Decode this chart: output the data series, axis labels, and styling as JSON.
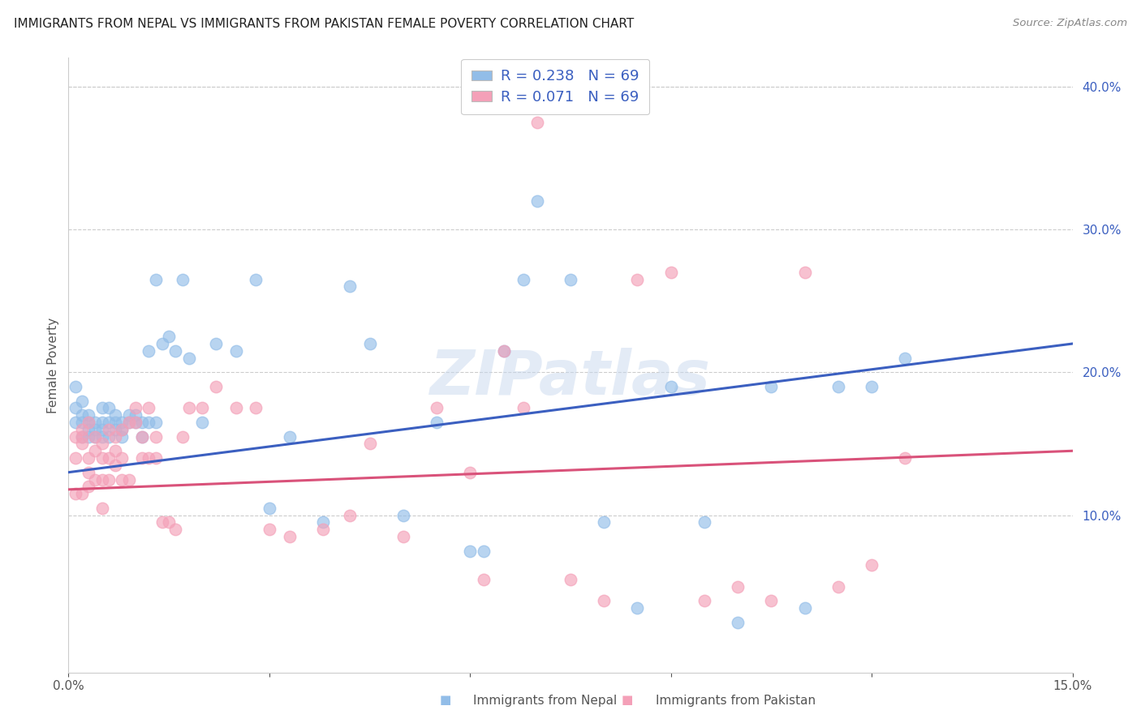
{
  "title": "IMMIGRANTS FROM NEPAL VS IMMIGRANTS FROM PAKISTAN FEMALE POVERTY CORRELATION CHART",
  "source": "Source: ZipAtlas.com",
  "xlabel_label": "Immigrants from Nepal",
  "xlabel_label2": "Immigrants from Pakistan",
  "ylabel": "Female Poverty",
  "xlim": [
    0.0,
    0.15
  ],
  "ylim": [
    -0.01,
    0.42
  ],
  "x_ticks": [
    0.0,
    0.15
  ],
  "x_tick_labels": [
    "0.0%",
    "15.0%"
  ],
  "y_ticks_right": [
    0.1,
    0.2,
    0.3,
    0.4
  ],
  "y_tick_labels_right": [
    "10.0%",
    "20.0%",
    "30.0%",
    "40.0%"
  ],
  "nepal_color": "#92BDE8",
  "pakistan_color": "#F4A0B8",
  "nepal_line_color": "#3B5FC0",
  "pakistan_line_color": "#D9527A",
  "legend_text_color": "#3B5FC0",
  "R_nepal": "0.238",
  "N_nepal": "69",
  "R_pakistan": "0.071",
  "N_pakistan": "69",
  "watermark": "ZIPatlas",
  "nepal_x": [
    0.001,
    0.001,
    0.001,
    0.002,
    0.002,
    0.002,
    0.002,
    0.003,
    0.003,
    0.003,
    0.003,
    0.004,
    0.004,
    0.004,
    0.005,
    0.005,
    0.005,
    0.005,
    0.006,
    0.006,
    0.006,
    0.007,
    0.007,
    0.007,
    0.008,
    0.008,
    0.008,
    0.009,
    0.009,
    0.01,
    0.01,
    0.011,
    0.011,
    0.012,
    0.012,
    0.013,
    0.013,
    0.014,
    0.015,
    0.016,
    0.017,
    0.018,
    0.02,
    0.022,
    0.025,
    0.028,
    0.03,
    0.033,
    0.038,
    0.042,
    0.045,
    0.05,
    0.055,
    0.06,
    0.062,
    0.065,
    0.068,
    0.07,
    0.075,
    0.08,
    0.085,
    0.09,
    0.095,
    0.1,
    0.105,
    0.11,
    0.115,
    0.12,
    0.125
  ],
  "nepal_y": [
    0.175,
    0.19,
    0.165,
    0.18,
    0.165,
    0.155,
    0.17,
    0.17,
    0.165,
    0.16,
    0.155,
    0.165,
    0.16,
    0.155,
    0.175,
    0.165,
    0.155,
    0.16,
    0.165,
    0.175,
    0.155,
    0.165,
    0.17,
    0.16,
    0.165,
    0.155,
    0.16,
    0.17,
    0.165,
    0.17,
    0.165,
    0.165,
    0.155,
    0.165,
    0.215,
    0.165,
    0.265,
    0.22,
    0.225,
    0.215,
    0.265,
    0.21,
    0.165,
    0.22,
    0.215,
    0.265,
    0.105,
    0.155,
    0.095,
    0.26,
    0.22,
    0.1,
    0.165,
    0.075,
    0.075,
    0.215,
    0.265,
    0.32,
    0.265,
    0.095,
    0.035,
    0.19,
    0.095,
    0.025,
    0.19,
    0.035,
    0.19,
    0.19,
    0.21
  ],
  "pakistan_x": [
    0.001,
    0.001,
    0.001,
    0.002,
    0.002,
    0.002,
    0.002,
    0.003,
    0.003,
    0.003,
    0.003,
    0.004,
    0.004,
    0.004,
    0.005,
    0.005,
    0.005,
    0.005,
    0.006,
    0.006,
    0.006,
    0.007,
    0.007,
    0.007,
    0.008,
    0.008,
    0.008,
    0.009,
    0.009,
    0.01,
    0.01,
    0.011,
    0.011,
    0.012,
    0.012,
    0.013,
    0.013,
    0.014,
    0.015,
    0.016,
    0.017,
    0.018,
    0.02,
    0.022,
    0.025,
    0.028,
    0.03,
    0.033,
    0.038,
    0.042,
    0.045,
    0.05,
    0.055,
    0.06,
    0.062,
    0.065,
    0.068,
    0.07,
    0.075,
    0.08,
    0.085,
    0.09,
    0.095,
    0.1,
    0.105,
    0.11,
    0.115,
    0.12,
    0.125
  ],
  "pakistan_y": [
    0.155,
    0.14,
    0.115,
    0.155,
    0.15,
    0.115,
    0.16,
    0.14,
    0.12,
    0.13,
    0.165,
    0.155,
    0.145,
    0.125,
    0.15,
    0.105,
    0.125,
    0.14,
    0.14,
    0.16,
    0.125,
    0.145,
    0.155,
    0.135,
    0.16,
    0.125,
    0.14,
    0.125,
    0.165,
    0.175,
    0.165,
    0.155,
    0.14,
    0.14,
    0.175,
    0.155,
    0.14,
    0.095,
    0.095,
    0.09,
    0.155,
    0.175,
    0.175,
    0.19,
    0.175,
    0.175,
    0.09,
    0.085,
    0.09,
    0.1,
    0.15,
    0.085,
    0.175,
    0.13,
    0.055,
    0.215,
    0.175,
    0.375,
    0.055,
    0.04,
    0.265,
    0.27,
    0.04,
    0.05,
    0.04,
    0.27,
    0.05,
    0.065,
    0.14
  ],
  "nepal_intercept": 0.13,
  "nepal_slope": 0.6,
  "pakistan_intercept": 0.118,
  "pakistan_slope": 0.18
}
